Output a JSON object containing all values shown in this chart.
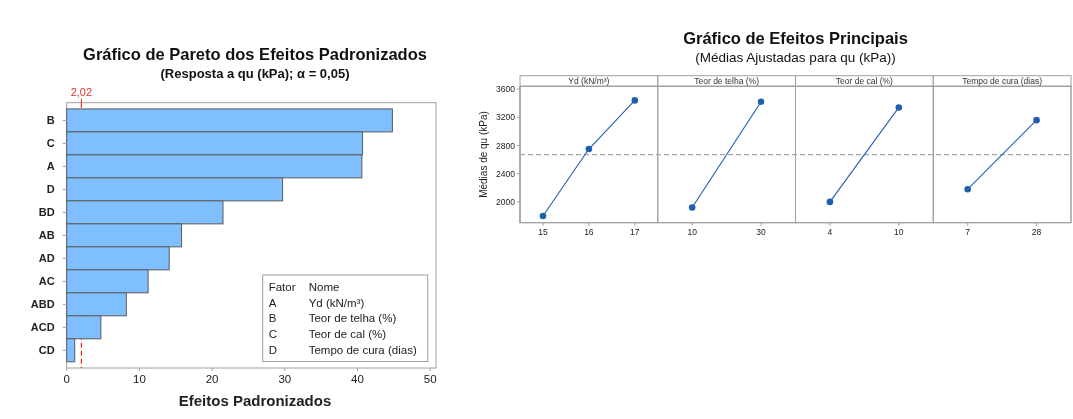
{
  "chart_data": [
    {
      "type": "bar",
      "orientation": "horizontal",
      "title": "Gráfico de Pareto dos Efeitos Padronizados",
      "subtitle": "(Resposta a qu (kPa); α = 0,05)",
      "xlabel": "Efeitos Padronizados",
      "categories": [
        "B",
        "C",
        "A",
        "D",
        "BD",
        "AB",
        "AD",
        "AC",
        "ABD",
        "ACD",
        "CD"
      ],
      "values": [
        44.8,
        40.7,
        40.6,
        29.7,
        21.5,
        15.8,
        14.1,
        11.2,
        8.2,
        4.7,
        1.1
      ],
      "color": "#80bfff",
      "xlim": [
        0,
        50.8
      ],
      "xticks": [
        0,
        10,
        20,
        30,
        40,
        50
      ],
      "ref_lines": [
        {
          "axis": "x",
          "value": 2.02,
          "label": "2,02",
          "color": "#e0302a",
          "line_style": "dashed"
        }
      ],
      "annotations": [
        "Fator",
        "Nome",
        "A",
        "Yd (kN/m³)",
        "B",
        "Teor de telha (%)",
        "C",
        "Teor de cal (%)",
        "D",
        "Tempo de cura (dias)"
      ]
    },
    {
      "type": "line",
      "title": "Gráfico de Efeitos Principais",
      "subtitle": "(Médias Ajustadas para qu (kPa))",
      "ylabel": "Médias de qu (kPa)",
      "categories": [
        "15",
        "16",
        "17",
        "10",
        "30",
        "4",
        "10",
        "7",
        "28"
      ],
      "series": [
        {
          "color": "#1f5fad",
          "values": [
            1800,
            2750,
            3440,
            null,
            null,
            null,
            null,
            null,
            null
          ]
        },
        {
          "color": "#1f5fad",
          "values": [
            null,
            null,
            null,
            1920,
            3420,
            null,
            null,
            null,
            null
          ]
        },
        {
          "color": "#1f5fad",
          "values": [
            null,
            null,
            null,
            null,
            null,
            2000,
            3340,
            null,
            null
          ]
        },
        {
          "color": "#1f5fad",
          "values": [
            null,
            null,
            null,
            null,
            null,
            null,
            null,
            2180,
            3160
          ]
        }
      ],
      "annotations": [
        "Yd (kN/m³)",
        "Teor de telha (%)",
        "Teor de cal (%)",
        "Tempo de cura (dias)"
      ],
      "ylim": [
        1705,
        3640
      ],
      "yticks": [
        2000,
        2400,
        2800,
        3200,
        3600
      ],
      "marker": "circle",
      "ref_lines": [
        {
          "axis": "y",
          "value": 2670,
          "color": "#a6a6a6",
          "line_style": "dashed"
        }
      ]
    }
  ]
}
